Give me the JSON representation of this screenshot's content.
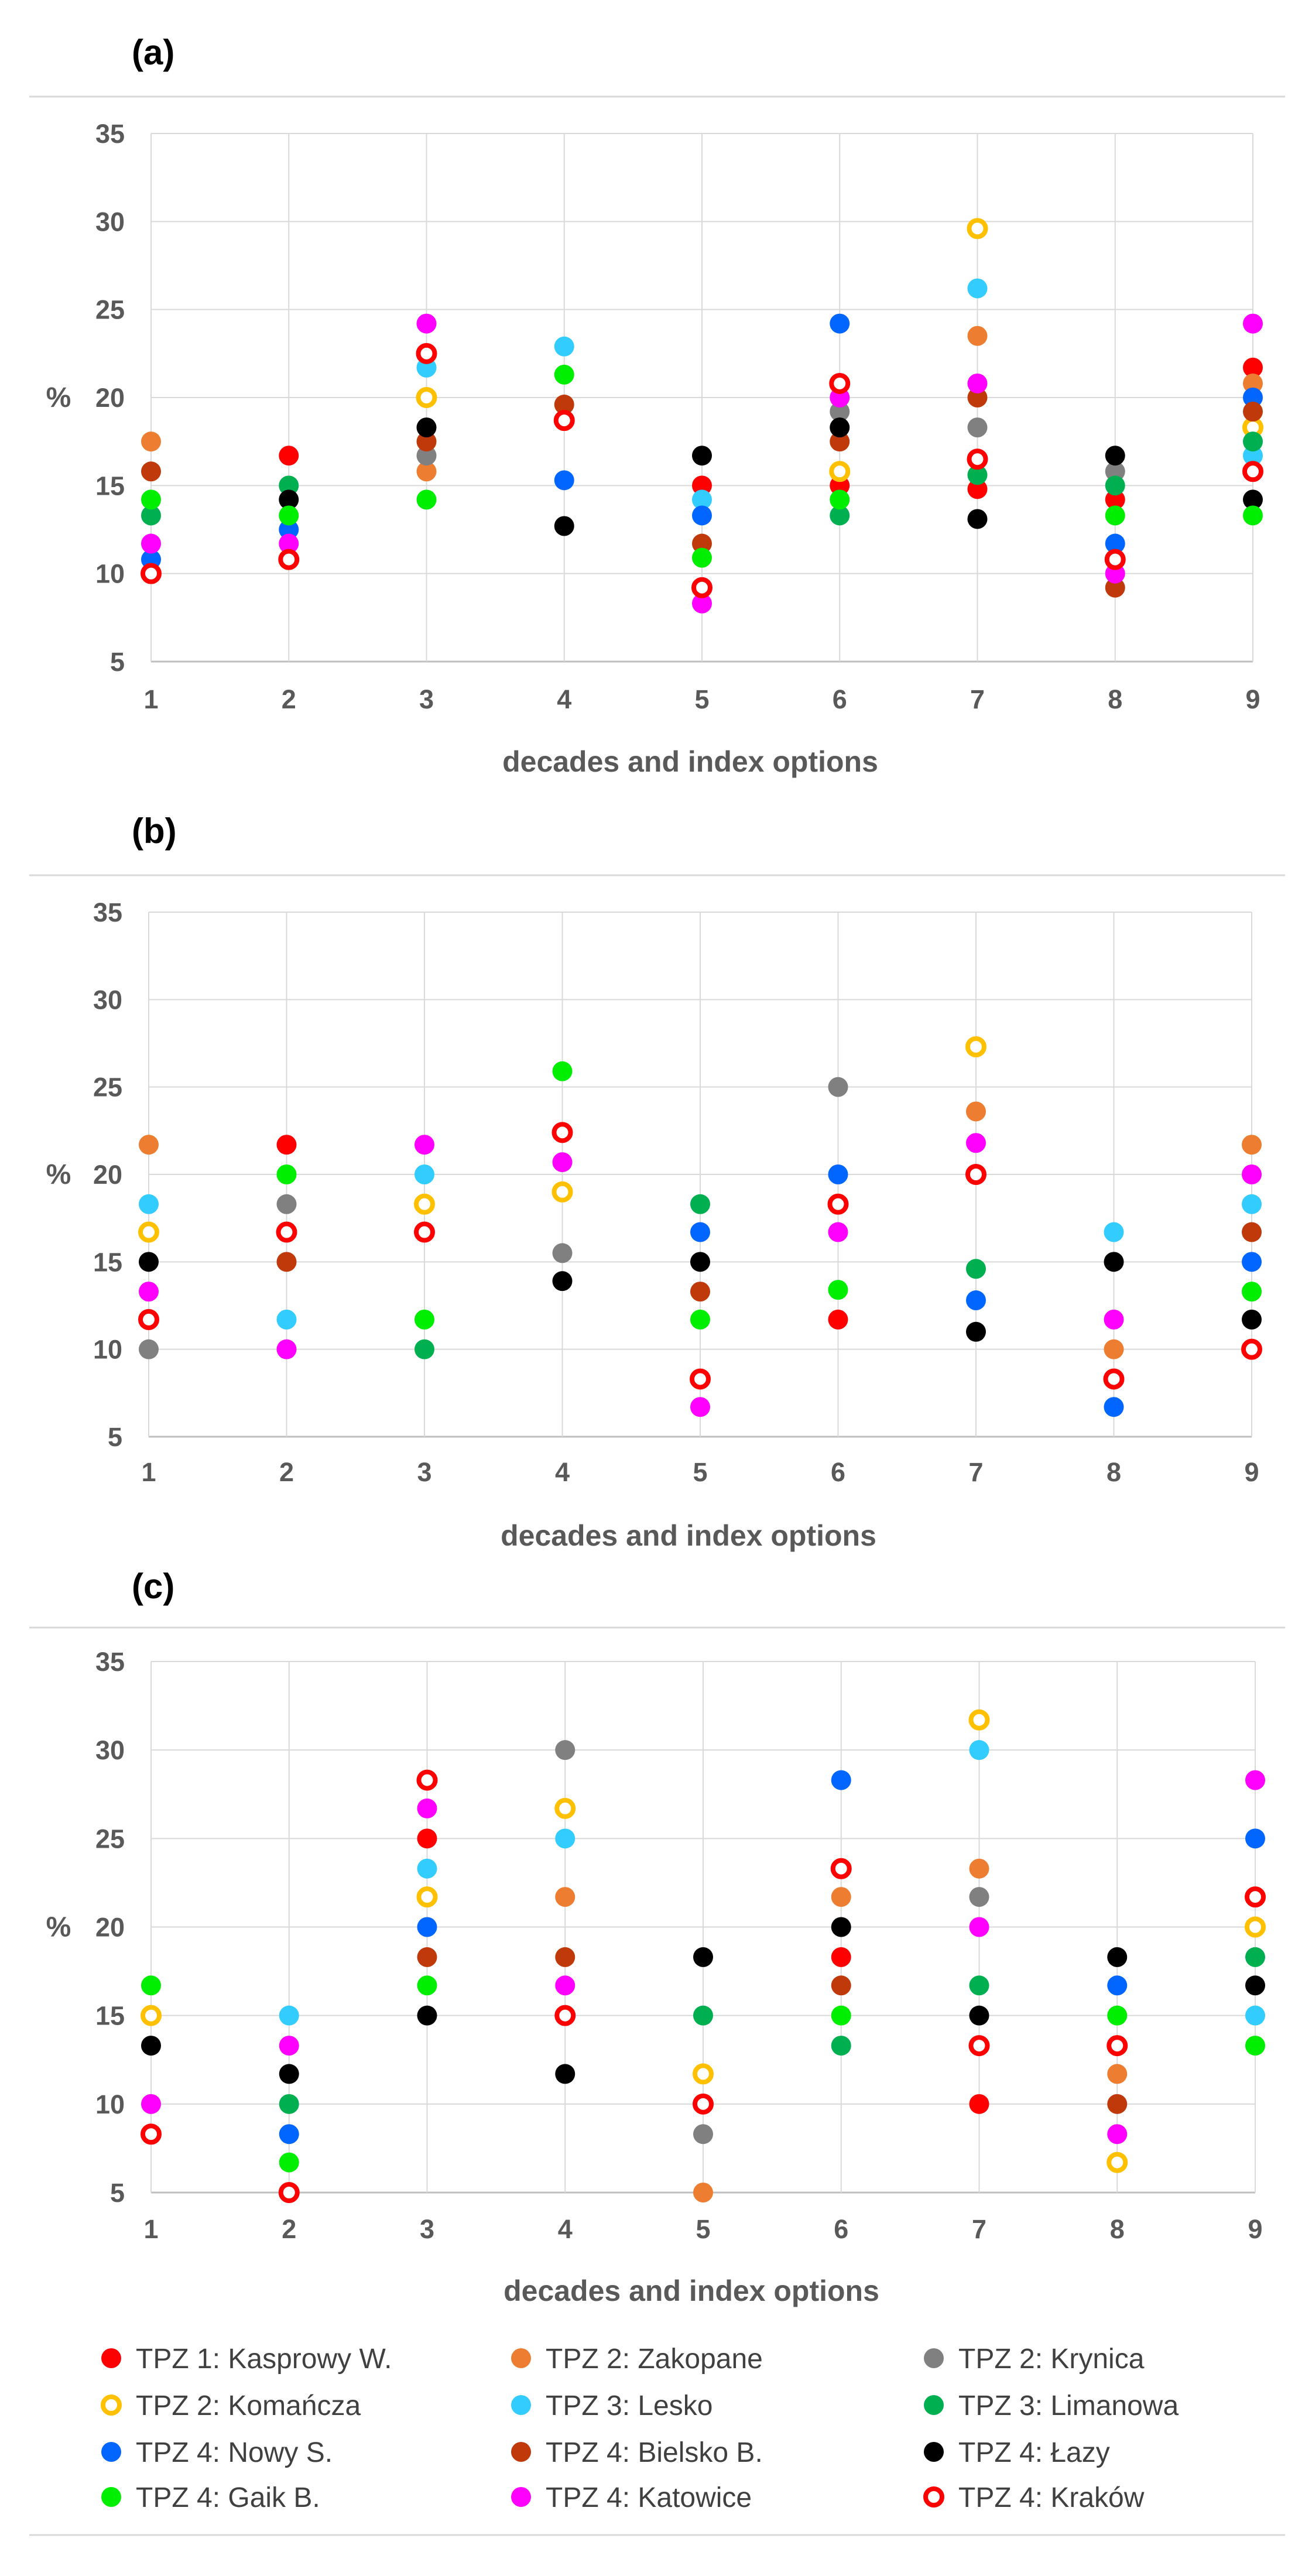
{
  "legend": [
    {
      "id": "kasprowy",
      "label": "TPZ 1: Kasprowy W.",
      "color": "#ff0000",
      "hollow": false
    },
    {
      "id": "zakopane",
      "label": "TPZ 2: Zakopane",
      "color": "#ed7d31",
      "hollow": false
    },
    {
      "id": "krynica",
      "label": "TPZ 2: Krynica",
      "color": "#808080",
      "hollow": false
    },
    {
      "id": "komancza",
      "label": "TPZ 2: Komańcza",
      "color": "#ffc000",
      "hollow": true
    },
    {
      "id": "lesko",
      "label": "TPZ 3: Lesko",
      "color": "#33ccff",
      "hollow": false
    },
    {
      "id": "limanowa",
      "label": "TPZ 3: Limanowa",
      "color": "#00b050",
      "hollow": false
    },
    {
      "id": "nowys",
      "label": "TPZ 4: Nowy S.",
      "color": "#0066ff",
      "hollow": false
    },
    {
      "id": "bielsko",
      "label": "TPZ 4: Bielsko B.",
      "color": "#c0390b",
      "hollow": false
    },
    {
      "id": "lazy",
      "label": "TPZ 4: Łazy",
      "color": "#000000",
      "hollow": false
    },
    {
      "id": "gaik",
      "label": "TPZ 4: Gaik B.",
      "color": "#00ee00",
      "hollow": false
    },
    {
      "id": "katowice",
      "label": "TPZ 4: Katowice",
      "color": "#ff00ff",
      "hollow": false
    },
    {
      "id": "krakow",
      "label": "TPZ 4: Kraków",
      "color": "#ff0000",
      "hollow": true
    }
  ],
  "chart_data": [
    {
      "panel": "(a)",
      "type": "scatter",
      "xlabel": "decades and index options",
      "ylabel": "%",
      "ylim": [
        5,
        35
      ],
      "yticks": [
        5,
        10,
        15,
        20,
        25,
        30,
        35
      ],
      "xticks": [
        1,
        2,
        3,
        4,
        5,
        6,
        7,
        8,
        9
      ],
      "series": [
        {
          "id": "kasprowy",
          "values": [
            null,
            16.7,
            null,
            null,
            15.0,
            15.0,
            14.8,
            14.2,
            21.7
          ]
        },
        {
          "id": "zakopane",
          "values": [
            17.5,
            null,
            15.8,
            null,
            null,
            null,
            23.5,
            null,
            20.8
          ]
        },
        {
          "id": "krynica",
          "values": [
            null,
            null,
            16.7,
            null,
            null,
            19.2,
            18.3,
            15.8,
            null
          ]
        },
        {
          "id": "komancza",
          "values": [
            null,
            null,
            20.0,
            null,
            null,
            15.8,
            29.6,
            null,
            18.3
          ]
        },
        {
          "id": "lesko",
          "values": [
            null,
            null,
            21.7,
            22.9,
            14.2,
            null,
            26.2,
            null,
            16.7
          ]
        },
        {
          "id": "limanowa",
          "values": [
            13.3,
            15.0,
            null,
            null,
            null,
            13.3,
            15.6,
            15.0,
            17.5
          ]
        },
        {
          "id": "nowys",
          "values": [
            10.8,
            12.5,
            null,
            15.3,
            13.3,
            24.2,
            null,
            11.7,
            20.0
          ]
        },
        {
          "id": "bielsko",
          "values": [
            15.8,
            null,
            17.5,
            19.6,
            11.7,
            17.5,
            20.0,
            9.2,
            19.2
          ]
        },
        {
          "id": "lazy",
          "values": [
            null,
            14.2,
            18.3,
            12.7,
            16.7,
            18.3,
            13.1,
            16.7,
            14.2
          ]
        },
        {
          "id": "gaik",
          "values": [
            14.2,
            13.3,
            14.2,
            21.3,
            10.9,
            14.2,
            null,
            13.3,
            13.3
          ]
        },
        {
          "id": "katowice",
          "values": [
            11.7,
            11.7,
            24.2,
            null,
            8.3,
            20.0,
            20.8,
            10.0,
            24.2
          ]
        },
        {
          "id": "krakow",
          "values": [
            10.0,
            10.8,
            22.5,
            18.7,
            9.2,
            20.8,
            16.5,
            10.8,
            15.8
          ]
        }
      ]
    },
    {
      "panel": "(b)",
      "type": "scatter",
      "xlabel": "decades and index options",
      "ylabel": "%",
      "ylim": [
        5,
        35
      ],
      "yticks": [
        5,
        10,
        15,
        20,
        25,
        30,
        35
      ],
      "xticks": [
        1,
        2,
        3,
        4,
        5,
        6,
        7,
        8,
        9
      ],
      "series": [
        {
          "id": "kasprowy",
          "values": [
            null,
            21.7,
            null,
            null,
            null,
            11.7,
            null,
            null,
            null
          ]
        },
        {
          "id": "zakopane",
          "values": [
            21.7,
            null,
            null,
            null,
            null,
            null,
            23.6,
            10.0,
            21.7
          ]
        },
        {
          "id": "krynica",
          "values": [
            10.0,
            18.3,
            null,
            15.5,
            null,
            25.0,
            null,
            null,
            null
          ]
        },
        {
          "id": "komancza",
          "values": [
            16.7,
            null,
            18.3,
            19.0,
            null,
            null,
            27.3,
            null,
            null
          ]
        },
        {
          "id": "lesko",
          "values": [
            18.3,
            11.7,
            20.0,
            null,
            null,
            null,
            null,
            16.7,
            18.3
          ]
        },
        {
          "id": "limanowa",
          "values": [
            null,
            null,
            10.0,
            null,
            18.3,
            null,
            14.6,
            null,
            null
          ]
        },
        {
          "id": "nowys",
          "values": [
            null,
            null,
            null,
            null,
            16.7,
            20.0,
            12.8,
            6.7,
            15.0
          ]
        },
        {
          "id": "bielsko",
          "values": [
            null,
            15.0,
            null,
            null,
            13.3,
            null,
            null,
            null,
            16.7
          ]
        },
        {
          "id": "lazy",
          "values": [
            15.0,
            null,
            null,
            13.9,
            15.0,
            null,
            11.0,
            15.0,
            11.7
          ]
        },
        {
          "id": "gaik",
          "values": [
            null,
            20.0,
            11.7,
            25.9,
            11.7,
            13.4,
            null,
            null,
            13.3
          ]
        },
        {
          "id": "katowice",
          "values": [
            13.3,
            10.0,
            21.7,
            20.7,
            6.7,
            16.7,
            21.8,
            11.7,
            20.0
          ]
        },
        {
          "id": "krakow",
          "values": [
            11.7,
            16.7,
            16.7,
            22.4,
            8.3,
            18.3,
            20.0,
            8.3,
            10.0
          ]
        }
      ]
    },
    {
      "panel": "(c)",
      "type": "scatter",
      "xlabel": "decades and index options",
      "ylabel": "%",
      "ylim": [
        5,
        35
      ],
      "yticks": [
        5,
        10,
        15,
        20,
        25,
        30,
        35
      ],
      "xticks": [
        1,
        2,
        3,
        4,
        5,
        6,
        7,
        8,
        9
      ],
      "series": [
        {
          "id": "kasprowy",
          "values": [
            null,
            null,
            25.0,
            null,
            null,
            18.3,
            10.0,
            null,
            null
          ]
        },
        {
          "id": "zakopane",
          "values": [
            null,
            null,
            null,
            21.7,
            5.0,
            21.7,
            23.3,
            11.7,
            null
          ]
        },
        {
          "id": "krynica",
          "values": [
            null,
            null,
            null,
            30.0,
            8.3,
            null,
            21.7,
            null,
            null
          ]
        },
        {
          "id": "komancza",
          "values": [
            15.0,
            null,
            21.7,
            26.7,
            11.7,
            null,
            31.7,
            6.7,
            20.0
          ]
        },
        {
          "id": "lesko",
          "values": [
            null,
            15.0,
            23.3,
            25.0,
            null,
            null,
            30.0,
            null,
            15.0
          ]
        },
        {
          "id": "limanowa",
          "values": [
            null,
            10.0,
            null,
            null,
            15.0,
            13.3,
            16.7,
            null,
            18.3
          ]
        },
        {
          "id": "nowys",
          "values": [
            null,
            8.3,
            20.0,
            null,
            null,
            28.3,
            null,
            16.7,
            25.0
          ]
        },
        {
          "id": "bielsko",
          "values": [
            null,
            null,
            18.3,
            18.3,
            null,
            16.7,
            null,
            10.0,
            null
          ]
        },
        {
          "id": "lazy",
          "values": [
            13.3,
            11.7,
            15.0,
            11.7,
            18.3,
            20.0,
            15.0,
            18.3,
            16.7
          ]
        },
        {
          "id": "gaik",
          "values": [
            16.7,
            6.7,
            16.7,
            null,
            null,
            15.0,
            null,
            15.0,
            13.3
          ]
        },
        {
          "id": "katowice",
          "values": [
            10.0,
            13.3,
            26.7,
            16.7,
            null,
            null,
            20.0,
            8.3,
            28.3
          ]
        },
        {
          "id": "krakow",
          "values": [
            8.3,
            5.0,
            28.3,
            15.0,
            10.0,
            23.3,
            13.3,
            13.3,
            21.7
          ]
        }
      ]
    }
  ]
}
